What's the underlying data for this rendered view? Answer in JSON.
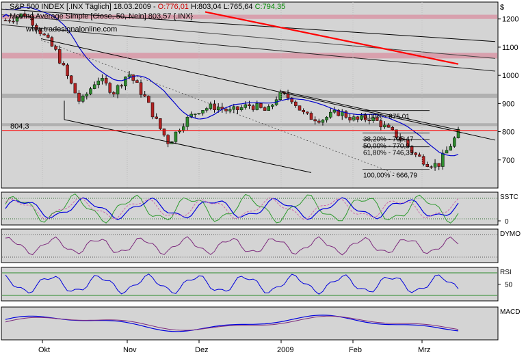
{
  "colors": {
    "panel_bg": "#d4d4d4",
    "frame": "#000000",
    "up_candle": "#2e8b2e",
    "down_candle": "#b22222",
    "ma_blue": "#0000cc",
    "trend_red": "#ff0000",
    "resistance_band": "#d896a6",
    "grey_band": "#a9a9a9",
    "osc_purple": "#7d2a7d",
    "osc_green": "#2e9a2e",
    "osc_blue": "#0000dd",
    "osc_pink": "#cc66aa"
  },
  "header": {
    "line1": {
      "instrument": "S&P 500 INDEX [.INX Täglich] 18.03.2009 - ",
      "open": "O:776,01",
      "high": "H:803,04",
      "low": "L:765,64",
      "close": "C:794,35"
    },
    "line2": {
      "icon": "ma-line-icon",
      "text": "Moving Average Simple [Close, 50, Nein] 803,57 {.INX}"
    },
    "watermark": "www.tradesignalonline.com",
    "currency": "$"
  },
  "chart_data": [
    {
      "type": "candlestick",
      "name": "price",
      "x_labels": [
        "Okt",
        "Nov",
        "Dez",
        "2009",
        "Feb",
        "Mrz"
      ],
      "y_ticks": [
        1200,
        1100,
        1000,
        900,
        800,
        700
      ],
      "ylim": [
        600,
        1260
      ],
      "current_price_line": {
        "value": 804.3,
        "label": "804,3"
      },
      "fib_levels": [
        {
          "pct": "0,00%",
          "value": 875.01,
          "label": "0,00% - 875,01"
        },
        {
          "pct": "38,20%",
          "value": 795.47,
          "label": "38,20% - 795,47"
        },
        {
          "pct": "50,00%",
          "value": 770.9,
          "label": "50,00% - 770,9"
        },
        {
          "pct": "61,80%",
          "value": 746.33,
          "label": "61,80% - 746,33"
        },
        {
          "pct": "100,00%",
          "value": 666.79,
          "label": "100,00% - 666,79"
        }
      ],
      "bands": [
        {
          "low": 1200,
          "high": 1215,
          "color": "resistance_band"
        },
        {
          "low": 1060,
          "high": 1080,
          "color": "resistance_band"
        },
        {
          "low": 920,
          "high": 935,
          "color": "grey_band"
        },
        {
          "low": 820,
          "high": 830,
          "color": "grey_band"
        }
      ]
    },
    {
      "type": "line",
      "name": "SSTC",
      "y_ticks": [
        0
      ]
    },
    {
      "type": "line",
      "name": "DYMO",
      "y_ticks": []
    },
    {
      "type": "line",
      "name": "RSI",
      "y_ticks": [
        50
      ]
    },
    {
      "type": "line",
      "name": "MACD",
      "y_ticks": []
    }
  ]
}
